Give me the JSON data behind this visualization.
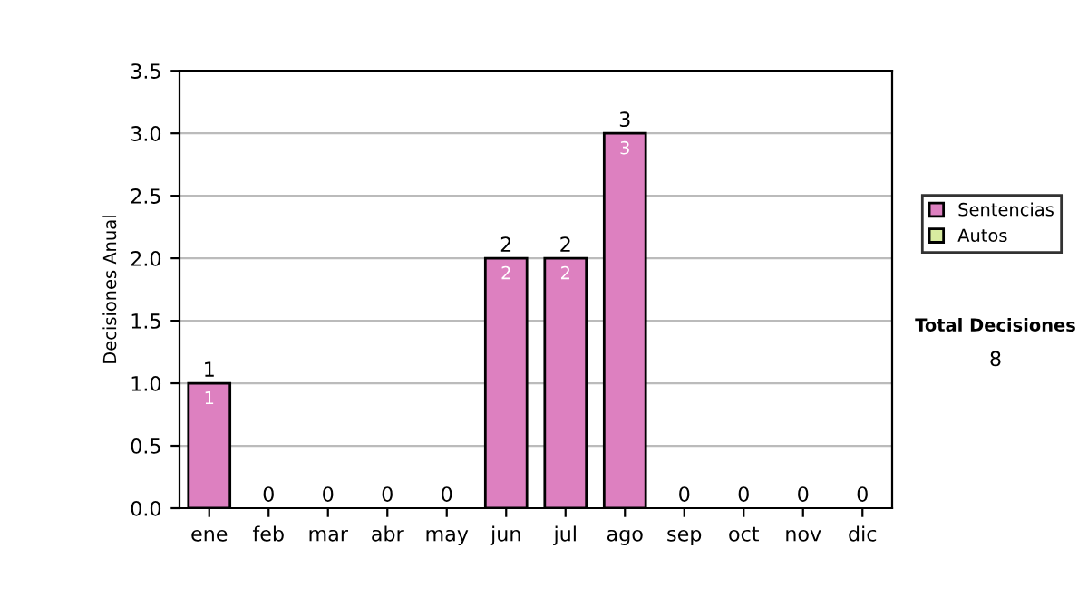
{
  "chart_data": {
    "type": "bar",
    "stacked": true,
    "ylabel": "Decisiones Anual",
    "categories": [
      "ene",
      "feb",
      "mar",
      "abr",
      "may",
      "jun",
      "jul",
      "ago",
      "sep",
      "oct",
      "nov",
      "dic"
    ],
    "series": [
      {
        "name": "Sentencias",
        "color": "#dd80c0",
        "values": [
          1,
          0,
          0,
          0,
          0,
          2,
          2,
          3,
          0,
          0,
          0,
          0
        ],
        "value_labels": [
          "1",
          null,
          null,
          null,
          null,
          "2",
          "2",
          "3",
          null,
          null,
          null,
          null
        ]
      },
      {
        "name": "Autos",
        "color": "#d8eca0",
        "values": [
          0,
          0,
          0,
          0,
          0,
          0,
          0,
          0,
          0,
          0,
          0,
          0
        ]
      }
    ],
    "totals": [
      "1",
      "0",
      "0",
      "0",
      "0",
      "2",
      "2",
      "3",
      "0",
      "0",
      "0",
      "0"
    ],
    "ylim": [
      0,
      3.5
    ],
    "yticks": [
      "0.0",
      "0.5",
      "1.0",
      "1.5",
      "2.0",
      "2.5",
      "3.0",
      "3.5"
    ],
    "grid": "y",
    "legend": "right",
    "annotations": [
      "Total Decisiones",
      "8"
    ]
  }
}
